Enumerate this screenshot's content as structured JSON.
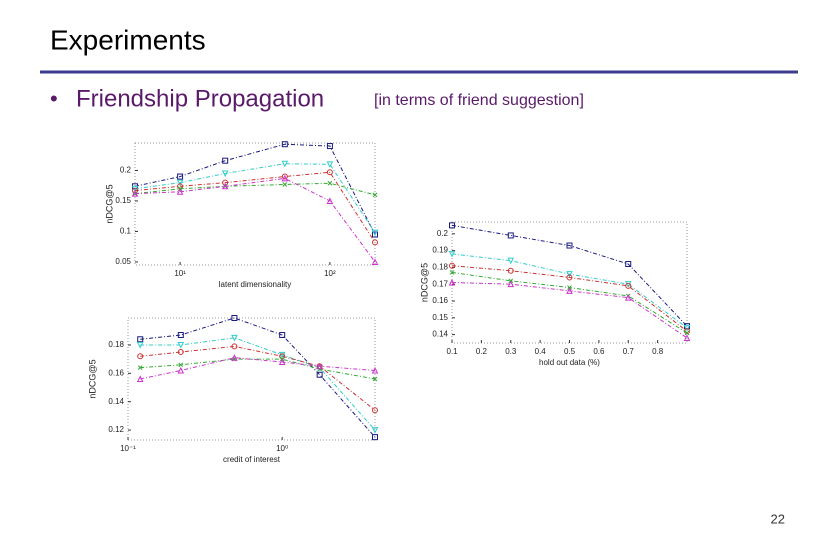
{
  "slide": {
    "title": "Experiments",
    "bullet": "Friendship Propagation",
    "bullet_note": "[in terms of friend suggestion]",
    "page_number": "22"
  },
  "chart_data": [
    {
      "type": "line",
      "xlabel": "latent dimensionality",
      "ylabel": "nDCG@5",
      "xscale": "log",
      "x": [
        5,
        10,
        20,
        50,
        100,
        200
      ],
      "xlim": [
        5,
        200
      ],
      "xticks": [
        {
          "value": 10,
          "label": "10¹"
        },
        {
          "value": 100,
          "label": "10²"
        }
      ],
      "ylim": [
        0.045,
        0.245
      ],
      "yticks": [
        {
          "value": 0.05,
          "label": "0.05"
        },
        0.1,
        0.15,
        0.2
      ],
      "series": [
        {
          "color": "#1a1a80",
          "marker": "square",
          "values": [
            0.174,
            0.19,
            0.216,
            0.243,
            0.24,
            0.095
          ]
        },
        {
          "color": "#33cccc",
          "marker": "triangle-down",
          "values": [
            0.17,
            0.18,
            0.195,
            0.211,
            0.21,
            0.098
          ]
        },
        {
          "color": "#cc3333",
          "marker": "circle",
          "values": [
            0.167,
            0.174,
            0.18,
            0.19,
            0.197,
            0.082
          ]
        },
        {
          "color": "#33aa33",
          "marker": "x",
          "values": [
            0.162,
            0.17,
            0.174,
            0.177,
            0.179,
            0.16
          ]
        },
        {
          "color": "#cc33cc",
          "marker": "triangle-up",
          "values": [
            0.162,
            0.165,
            0.174,
            0.187,
            0.15,
            0.05
          ]
        }
      ]
    },
    {
      "type": "line",
      "xlabel": "hold out data (%)",
      "ylabel": "nDCG@5",
      "xscale": "linear",
      "x": [
        0.1,
        0.3,
        0.5,
        0.7,
        0.9
      ],
      "xlim": [
        0.1,
        0.9
      ],
      "xticks": [
        0.1,
        0.2,
        0.3,
        0.4,
        0.5,
        0.6,
        0.7,
        0.8
      ],
      "ylim": [
        0.135,
        0.207
      ],
      "yticks": [
        0.14,
        0.15,
        0.16,
        0.17,
        0.18,
        0.19,
        0.2
      ],
      "series": [
        {
          "color": "#1a1a80",
          "marker": "square",
          "values": [
            0.205,
            0.199,
            0.193,
            0.182,
            0.145
          ]
        },
        {
          "color": "#33cccc",
          "marker": "triangle-down",
          "values": [
            0.188,
            0.184,
            0.176,
            0.17,
            0.144
          ]
        },
        {
          "color": "#cc3333",
          "marker": "circle",
          "values": [
            0.181,
            0.178,
            0.174,
            0.169,
            0.142
          ]
        },
        {
          "color": "#33aa33",
          "marker": "x",
          "values": [
            0.177,
            0.172,
            0.168,
            0.163,
            0.141
          ]
        },
        {
          "color": "#cc33cc",
          "marker": "triangle-up",
          "values": [
            0.171,
            0.17,
            0.166,
            0.162,
            0.138
          ]
        }
      ]
    },
    {
      "type": "line",
      "xlabel": "credit of interest",
      "ylabel": "nDCG@5",
      "xscale": "log",
      "x": [
        0.12,
        0.22,
        0.49,
        1,
        1.75,
        4
      ],
      "xlim": [
        0.1,
        4
      ],
      "xticks": [
        {
          "value": 0.1,
          "label": "10⁻¹"
        },
        {
          "value": 1,
          "label": "10⁰"
        }
      ],
      "ylim": [
        0.113,
        0.199
      ],
      "yticks": [
        0.12,
        0.14,
        0.16,
        0.18
      ],
      "series": [
        {
          "color": "#1a1a80",
          "marker": "square",
          "values": [
            0.184,
            0.187,
            0.199,
            0.187,
            0.159,
            0.115
          ]
        },
        {
          "color": "#33cccc",
          "marker": "triangle-down",
          "values": [
            0.18,
            0.18,
            0.185,
            0.173,
            0.164,
            0.12
          ]
        },
        {
          "color": "#cc3333",
          "marker": "circle",
          "values": [
            0.172,
            0.175,
            0.179,
            0.172,
            0.165,
            0.134
          ]
        },
        {
          "color": "#33aa33",
          "marker": "x",
          "values": [
            0.164,
            0.166,
            0.17,
            0.17,
            0.163,
            0.156
          ]
        },
        {
          "color": "#cc33cc",
          "marker": "triangle-up",
          "values": [
            0.156,
            0.162,
            0.171,
            0.168,
            0.165,
            0.162
          ]
        }
      ]
    }
  ]
}
